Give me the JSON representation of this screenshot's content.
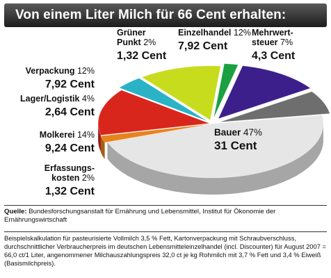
{
  "title": "Von einem Liter Milch für 66 Cent erhalten:",
  "chart_data": {
    "type": "pie",
    "unit": "Cent",
    "total": 66,
    "slices": [
      {
        "name_lines": [
          "Bauer"
        ],
        "percent": 47,
        "percent_text": "47%",
        "value": 31,
        "value_text": "31 Cent",
        "color": "#e6e6e6"
      },
      {
        "name_lines": [
          "Erfassungs-",
          "kosten"
        ],
        "percent": 2,
        "percent_text": "2%",
        "value": 1.32,
        "value_text": "1,32 Cent",
        "color": "#e8821c"
      },
      {
        "name_lines": [
          "Molkerei"
        ],
        "percent": 14,
        "percent_text": "14%",
        "value": 9.24,
        "value_text": "9,24 Cent",
        "color": "#d9261c"
      },
      {
        "name_lines": [
          "Lager/Logistik"
        ],
        "percent": 4,
        "percent_text": "4%",
        "value": 2.64,
        "value_text": "2,64 Cent",
        "color": "#2ab3c6"
      },
      {
        "name_lines": [
          "Verpackung"
        ],
        "percent": 12,
        "percent_text": "12%",
        "value": 7.92,
        "value_text": "7,92 Cent",
        "color": "#c8dc1e"
      },
      {
        "name_lines": [
          "Grüner",
          "Punkt"
        ],
        "percent": 2,
        "percent_text": "2%",
        "value": 1.32,
        "value_text": "1,32 Cent",
        "color": "#1aa040"
      },
      {
        "name_lines": [
          "Einzelhandel"
        ],
        "percent": 12,
        "percent_text": "12%",
        "value": 7.92,
        "value_text": "7,92 Cent",
        "color": "#3d1f8c"
      },
      {
        "name_lines": [
          "Mehrwert-",
          "steuer"
        ],
        "percent": 7,
        "percent_text": "7%",
        "value": 4.3,
        "value_text": "4,3 Cent",
        "color": "#6e6e6e"
      }
    ]
  },
  "footer": {
    "source_label": "Quelle:",
    "source_text": "Bundesforschungsanstalt für Ernährung und Lebensmittel, Institut für Ökonomie der Ernährungswirtschaft",
    "note": "Beispielskalkulation für pasteurisierte Vollmilch 3,5 % Fett, Kartonverpackung mit Schraubverschluss, durchschnittlicher Verbraucherpreis im deutschen Lebensmitteleinzelhandel (incl. Discounter) für August 2007 = 66,0 ct/1 Liter, angenommener Milchauszahlungspreis 32,0 ct je kg Rohmilch mit 3,7 % Fett und 3,4 % Eiweiß (Basismilchpreis)."
  }
}
